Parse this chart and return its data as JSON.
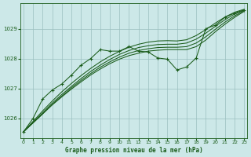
{
  "background_color": "#cce8e8",
  "plot_bg_color": "#cce8e8",
  "grid_color": "#9bbfbf",
  "line_color": "#1a5c1a",
  "xlabel": "Graphe pression niveau de la mer (hPa)",
  "xlim": [
    -0.3,
    23.3
  ],
  "ylim": [
    1025.35,
    1029.85
  ],
  "yticks": [
    1026,
    1027,
    1028,
    1029
  ],
  "xticks": [
    0,
    1,
    2,
    3,
    4,
    5,
    6,
    7,
    8,
    9,
    10,
    11,
    12,
    13,
    14,
    15,
    16,
    17,
    18,
    19,
    20,
    21,
    22,
    23
  ],
  "smooth_lines": [
    [
      1025.55,
      1025.85,
      1026.15,
      1026.45,
      1026.72,
      1026.98,
      1027.22,
      1027.45,
      1027.65,
      1027.83,
      1027.98,
      1028.1,
      1028.18,
      1028.25,
      1028.28,
      1028.3,
      1028.3,
      1028.3,
      1028.4,
      1028.62,
      1028.9,
      1029.15,
      1029.38,
      1029.58
    ],
    [
      1025.55,
      1025.85,
      1026.15,
      1026.47,
      1026.75,
      1027.02,
      1027.27,
      1027.5,
      1027.71,
      1027.89,
      1028.05,
      1028.18,
      1028.27,
      1028.33,
      1028.37,
      1028.38,
      1028.38,
      1028.4,
      1028.52,
      1028.73,
      1028.98,
      1029.22,
      1029.43,
      1029.6
    ],
    [
      1025.55,
      1025.87,
      1026.19,
      1026.51,
      1026.8,
      1027.07,
      1027.33,
      1027.57,
      1027.78,
      1027.97,
      1028.14,
      1028.27,
      1028.37,
      1028.43,
      1028.47,
      1028.48,
      1028.48,
      1028.52,
      1028.65,
      1028.85,
      1029.08,
      1029.3,
      1029.49,
      1029.62
    ],
    [
      1025.55,
      1025.9,
      1026.25,
      1026.58,
      1026.89,
      1027.17,
      1027.43,
      1027.67,
      1027.89,
      1028.08,
      1028.24,
      1028.38,
      1028.48,
      1028.55,
      1028.59,
      1028.6,
      1028.59,
      1028.63,
      1028.77,
      1028.97,
      1029.19,
      1029.39,
      1029.55,
      1029.65
    ]
  ],
  "marker_line": [
    1025.55,
    1026.0,
    1026.65,
    1026.95,
    1027.15,
    1027.45,
    1027.78,
    1028.0,
    1028.3,
    1028.25,
    1028.25,
    1028.4,
    1028.25,
    1028.22,
    1028.02,
    1027.98,
    1027.62,
    1027.72,
    1028.02,
    1029.0,
    1029.12,
    1029.38,
    1029.52,
    1029.63
  ]
}
